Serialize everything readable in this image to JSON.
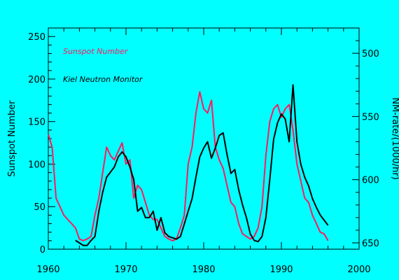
{
  "chart_data": {
    "type": "line",
    "colors": {
      "background": "#00ffff",
      "axes": "#000000"
    },
    "grid": false,
    "legend_placement": "top-left",
    "x_ticks": [
      1960,
      1970,
      1980,
      1990,
      2000
    ],
    "xlim": [
      1960,
      2000
    ],
    "left_axis": {
      "label": "Sunspot Number",
      "ticks": [
        0,
        50,
        100,
        150,
        200,
        250
      ],
      "ylim": [
        0,
        260
      ]
    },
    "right_axis": {
      "label": "NM-rate/(1000/hr)",
      "ticks": [
        500,
        550,
        600,
        650
      ],
      "ylim": [
        480,
        655
      ],
      "inverted": true
    },
    "series": [
      {
        "name": "Sunspot Number",
        "axis": "left",
        "color": "#ff1a60",
        "x": [
          1960.0,
          1960.5,
          1961.0,
          1961.5,
          1962.0,
          1962.5,
          1963.0,
          1963.5,
          1964.0,
          1964.5,
          1965.0,
          1965.5,
          1966.0,
          1966.5,
          1967.0,
          1967.5,
          1968.0,
          1968.5,
          1969.0,
          1969.5,
          1970.0,
          1970.5,
          1971.0,
          1971.5,
          1972.0,
          1972.5,
          1973.0,
          1973.5,
          1974.0,
          1974.5,
          1975.0,
          1975.5,
          1976.0,
          1976.5,
          1977.0,
          1977.5,
          1978.0,
          1978.5,
          1979.0,
          1979.5,
          1980.0,
          1980.5,
          1981.0,
          1981.5,
          1982.0,
          1982.5,
          1983.0,
          1983.5,
          1984.0,
          1984.5,
          1985.0,
          1985.5,
          1986.0,
          1986.5,
          1987.0,
          1987.5,
          1988.0,
          1988.5,
          1989.0,
          1989.5,
          1990.0,
          1990.5,
          1991.0,
          1991.5,
          1992.0,
          1992.5,
          1993.0,
          1993.5,
          1994.0,
          1994.5,
          1995.0,
          1995.5,
          1996.0
        ],
        "y": [
          135,
          120,
          60,
          50,
          40,
          35,
          30,
          25,
          12,
          10,
          12,
          15,
          40,
          60,
          90,
          120,
          110,
          105,
          115,
          125,
          100,
          105,
          60,
          75,
          70,
          55,
          40,
          35,
          35,
          25,
          15,
          12,
          10,
          12,
          25,
          40,
          100,
          120,
          160,
          185,
          165,
          160,
          175,
          120,
          105,
          95,
          75,
          55,
          50,
          30,
          18,
          15,
          12,
          15,
          25,
          50,
          110,
          150,
          165,
          170,
          155,
          165,
          170,
          140,
          100,
          80,
          60,
          55,
          40,
          30,
          20,
          18,
          10
        ]
      },
      {
        "name": "Kiel Neutron Monitor",
        "axis": "right",
        "color": "#000000",
        "x": [
          1963.5,
          1964.0,
          1964.5,
          1965.0,
          1965.5,
          1966.0,
          1966.5,
          1967.0,
          1967.5,
          1968.0,
          1968.5,
          1969.0,
          1969.5,
          1970.0,
          1970.5,
          1971.0,
          1971.5,
          1972.0,
          1972.5,
          1973.0,
          1973.5,
          1974.0,
          1974.5,
          1975.0,
          1975.5,
          1976.0,
          1976.5,
          1977.0,
          1977.5,
          1978.0,
          1978.5,
          1979.0,
          1979.5,
          1980.0,
          1980.5,
          1981.0,
          1981.5,
          1982.0,
          1982.5,
          1983.0,
          1983.5,
          1984.0,
          1984.5,
          1985.0,
          1985.5,
          1986.0,
          1986.5,
          1987.0,
          1987.5,
          1988.0,
          1988.5,
          1989.0,
          1989.5,
          1990.0,
          1990.5,
          1991.0,
          1991.5,
          1992.0,
          1992.5,
          1993.0,
          1993.5,
          1994.0,
          1994.5,
          1995.0,
          1995.5,
          1996.0
        ],
        "y": [
          648,
          650,
          652,
          652,
          648,
          645,
          625,
          610,
          598,
          594,
          590,
          582,
          578,
          582,
          590,
          600,
          625,
          622,
          630,
          630,
          625,
          640,
          630,
          642,
          645,
          646,
          647,
          645,
          635,
          625,
          615,
          598,
          582,
          575,
          570,
          583,
          575,
          565,
          563,
          580,
          595,
          592,
          608,
          620,
          630,
          643,
          648,
          649,
          645,
          630,
          600,
          568,
          555,
          548,
          552,
          570,
          525,
          570,
          588,
          598,
          605,
          615,
          622,
          628,
          632,
          636
        ]
      }
    ]
  }
}
